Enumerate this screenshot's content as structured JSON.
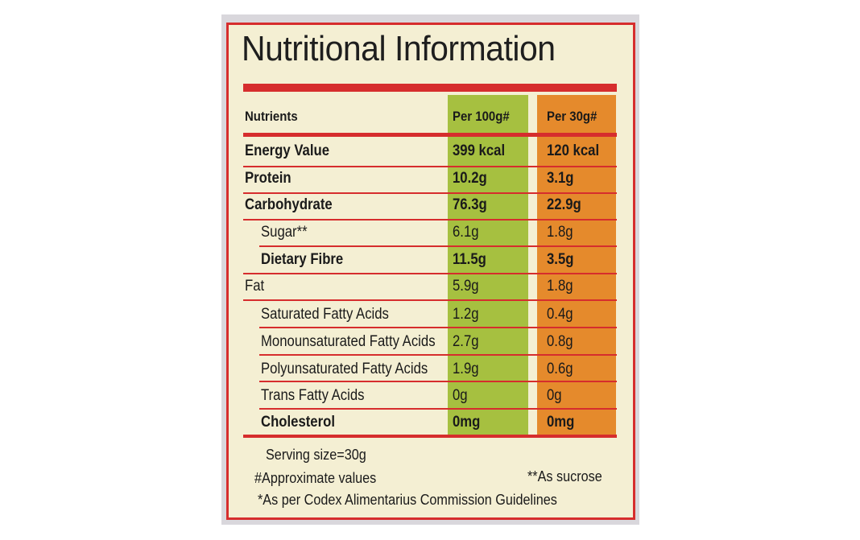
{
  "title": "Nutritional Information",
  "header": {
    "nutrients": "Nutrients",
    "per100": "Per 100g#",
    "per30": "Per 30g#"
  },
  "rows": [
    {
      "name": "Energy Value",
      "per100": "399 kcal",
      "per30": "120 kcal"
    },
    {
      "name": "Protein",
      "per100": "10.2g",
      "per30": "3.1g"
    },
    {
      "name": "Carbohydrate",
      "per100": "76.3g",
      "per30": "22.9g"
    },
    {
      "name": "Sugar**",
      "per100": "6.1g",
      "per30": "1.8g"
    },
    {
      "name": "Dietary Fibre",
      "per100": "11.5g",
      "per30": "3.5g"
    },
    {
      "name": "Fat",
      "per100": "5.9g",
      "per30": "1.8g"
    },
    {
      "name": "Saturated Fatty Acids",
      "per100": "1.2g",
      "per30": "0.4g"
    },
    {
      "name": "Monounsaturated Fatty Acids",
      "per100": "2.7g",
      "per30": "0.8g"
    },
    {
      "name": "Polyunsaturated Fatty Acids",
      "per100": "1.9g",
      "per30": "0.6g"
    },
    {
      "name": "Trans Fatty Acids",
      "per100": "0g",
      "per30": "0g"
    },
    {
      "name": "Cholesterol",
      "per100": "0mg",
      "per30": "0mg"
    }
  ],
  "footer": {
    "serving": "Serving size=30g",
    "approx": "#Approximate values",
    "sucrose": "**As sucrose",
    "codex": "*As per Codex Alimentarius Commission Guidelines"
  },
  "colors": {
    "red": "#d62d2d",
    "green": "#a6c040",
    "orange": "#e58a2c",
    "cream": "#f4efd3"
  }
}
